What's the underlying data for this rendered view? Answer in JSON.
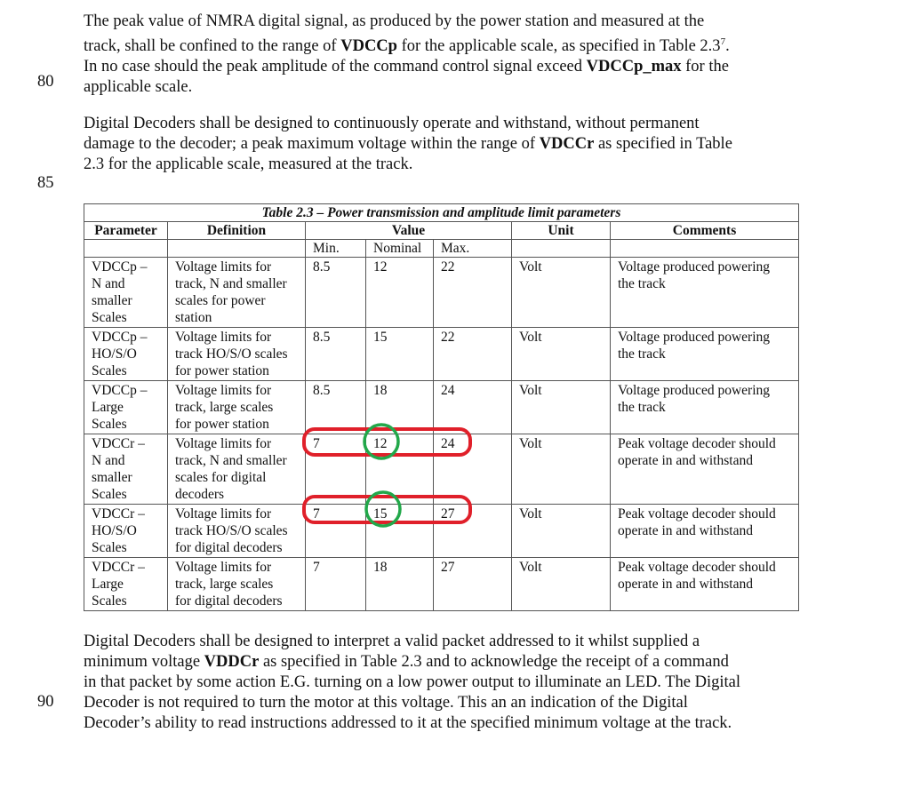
{
  "line_numbers": [
    "80",
    "85",
    "90"
  ],
  "paragraph1": {
    "l1": "The peak value of NMRA digital signal, as produced by the power station and measured at the",
    "l2a": "track, shall be confined to the range of ",
    "l2b": "VDCCp",
    "l2c": " for the applicable scale, as specified in Table 2.3",
    "l2sup": "7",
    "l2d": ".",
    "l3a": "In no case should the peak amplitude of the command control signal exceed ",
    "l3b": "VDCCp_max",
    "l3c": " for the",
    "l4": "applicable scale."
  },
  "paragraph2": {
    "l1": "Digital Decoders shall be designed to continuously operate and withstand, without permanent",
    "l2a": "damage to the decoder; a peak maximum voltage within the range of ",
    "l2b": "VDCCr",
    "l2c": " as specified in Table",
    "l3": "2.3 for the applicable scale, measured at the track."
  },
  "table": {
    "caption": "Table 2.3 – Power transmission and amplitude limit parameters",
    "headers": {
      "parameter": "Parameter",
      "definition": "Definition",
      "value": "Value",
      "unit": "Unit",
      "comments": "Comments"
    },
    "subheaders": {
      "min": "Min.",
      "nominal": "Nominal",
      "max": "Max."
    },
    "rows": [
      {
        "parameter": "VDCCp –\nN and\nsmaller\nScales",
        "definition": "Voltage limits for\ntrack, N and smaller\nscales for power\nstation",
        "min": "8.5",
        "nominal": "12",
        "max": "22",
        "unit": "Volt",
        "comments": "Voltage produced powering\nthe track"
      },
      {
        "parameter": "VDCCp –\nHO/S/O\nScales",
        "definition": "Voltage limits for\ntrack HO/S/O scales\nfor power station",
        "min": "8.5",
        "nominal": "15",
        "max": "22",
        "unit": "Volt",
        "comments": "Voltage produced powering\nthe track"
      },
      {
        "parameter": "VDCCp –\nLarge\nScales",
        "definition": "Voltage limits for\ntrack, large scales\nfor power station",
        "min": "8.5",
        "nominal": "18",
        "max": "24",
        "unit": "Volt",
        "comments": "Voltage produced powering\nthe track"
      },
      {
        "parameter": "VDCCr –\nN and\nsmaller\nScales",
        "definition": "Voltage limits for\ntrack, N and smaller\nscales for digital\ndecoders",
        "min": "7",
        "nominal": "12",
        "max": "24",
        "unit": "Volt",
        "comments": "Peak voltage decoder should\noperate in and withstand"
      },
      {
        "parameter": "VDCCr –\nHO/S/O\nScales",
        "definition": "Voltage limits for\ntrack HO/S/O scales\nfor digital decoders",
        "min": "7",
        "nominal": "15",
        "max": "27",
        "unit": "Volt",
        "comments": "Peak voltage decoder should\noperate in and withstand"
      },
      {
        "parameter": "VDCCr –\nLarge\nScales",
        "definition": "Voltage limits for\ntrack, large scales\nfor digital decoders",
        "min": "7",
        "nominal": "18",
        "max": "27",
        "unit": "Volt",
        "comments": "Peak voltage decoder should\noperate in and withstand"
      }
    ]
  },
  "annotations": {
    "highlight_box_color": "#e0202a",
    "highlight_circle_color": "#22a84a"
  },
  "paragraph3": {
    "l1": "Digital Decoders shall be designed to interpret a valid packet addressed to it whilst supplied a",
    "l2a": "minimum voltage ",
    "l2b": "VDDCr",
    "l2c": " as specified in Table 2.3 and to acknowledge the receipt of a command",
    "l3": "in that packet by some action E.G. turning on a low power output to illuminate an LED. The Digital",
    "l4": "Decoder is not required to turn the motor at this voltage. This an an indication of the Digital",
    "l5": "Decoder’s ability to read instructions addressed to it at the specified minimum voltage at the track."
  }
}
